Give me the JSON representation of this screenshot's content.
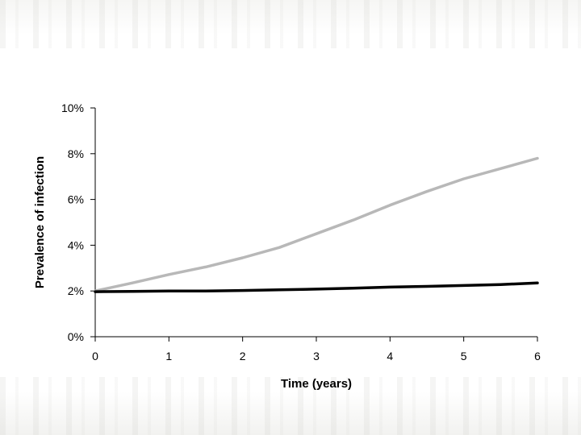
{
  "chart_data": {
    "type": "line",
    "title": "",
    "xlabel": "Time (years)",
    "ylabel": "Prevalence of infection",
    "xlim": [
      0,
      6
    ],
    "ylim": [
      0,
      10
    ],
    "x_ticks": [
      0,
      1,
      2,
      3,
      4,
      5,
      6
    ],
    "y_ticks": [
      0,
      2,
      4,
      6,
      8,
      10
    ],
    "x_tick_labels": [
      "0",
      "1",
      "2",
      "3",
      "4",
      "5",
      "6"
    ],
    "y_tick_labels": [
      "0%",
      "2%",
      "4%",
      "6%",
      "8%",
      "10%"
    ],
    "grid": false,
    "legend": "none",
    "series": [
      {
        "color": "#b8b8b8",
        "x": [
          0,
          0.5,
          1,
          1.5,
          2,
          2.5,
          3,
          3.5,
          4,
          4.5,
          5,
          5.5,
          6
        ],
        "values": [
          2.0,
          2.35,
          2.72,
          3.05,
          3.45,
          3.9,
          4.5,
          5.1,
          5.75,
          6.35,
          6.9,
          7.35,
          7.8
        ]
      },
      {
        "color": "#000000",
        "x": [
          0,
          0.5,
          1,
          1.5,
          2,
          2.5,
          3,
          3.5,
          4,
          4.5,
          5,
          5.5,
          6
        ],
        "values": [
          1.97,
          1.98,
          2.0,
          2.0,
          2.02,
          2.05,
          2.08,
          2.12,
          2.17,
          2.2,
          2.24,
          2.28,
          2.35
        ]
      }
    ]
  }
}
